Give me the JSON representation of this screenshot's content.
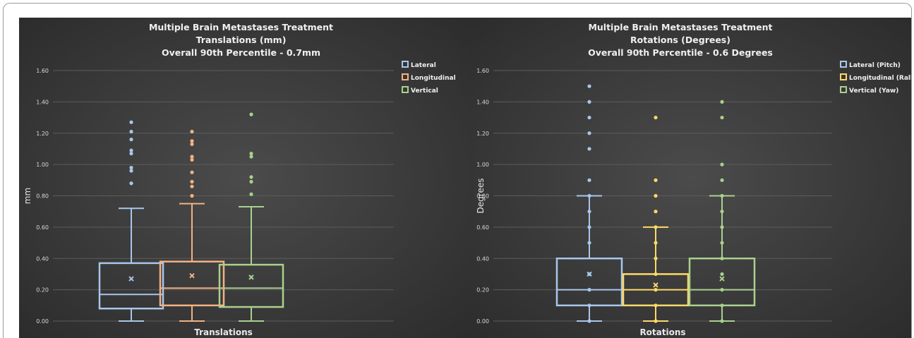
{
  "chart_data": [
    {
      "type": "box",
      "title_lines": [
        "Multiple Brain Metastases Treatment",
        "Translations (mm)",
        "Overall 90th Percentile - 0.7mm"
      ],
      "xlabel": "Translations",
      "ylabel": "mm",
      "ylim": [
        0,
        1.6
      ],
      "yticks": [
        "0.00",
        "0.20",
        "0.40",
        "0.60",
        "0.80",
        "1.00",
        "1.20",
        "1.40",
        "1.60"
      ],
      "grid": true,
      "legend": "top-right",
      "series": [
        {
          "name": "Lateral",
          "color": "#a9c6ea",
          "whisker_low": 0,
          "q1": 0.08,
          "median": 0.17,
          "q3": 0.37,
          "whisker_high": 0.72,
          "mean": 0.27,
          "points": [],
          "outliers": [
            0.88,
            0.96,
            0.98,
            1.07,
            1.09,
            1.16,
            1.21,
            1.27
          ]
        },
        {
          "name": "Longitudinal",
          "color": "#f4b183",
          "whisker_low": 0,
          "q1": 0.1,
          "median": 0.21,
          "q3": 0.38,
          "whisker_high": 0.75,
          "mean": 0.29,
          "points": [],
          "outliers": [
            0.8,
            0.86,
            0.89,
            0.95,
            1.03,
            1.05,
            1.13,
            1.15,
            1.21
          ]
        },
        {
          "name": "Vertical",
          "color": "#a9d18e",
          "whisker_low": 0,
          "q1": 0.09,
          "median": 0.21,
          "q3": 0.36,
          "whisker_high": 0.73,
          "mean": 0.28,
          "points": [],
          "outliers": [
            0.81,
            0.89,
            0.92,
            1.05,
            1.07,
            1.32
          ]
        }
      ]
    },
    {
      "type": "box",
      "title_lines": [
        "Multiple Brain Metastases Treatment",
        "Rotations (Degrees)",
        "Overall 90th Percentile - 0.6 Degrees"
      ],
      "xlabel": "Rotations",
      "ylabel": "Degrees",
      "ylim": [
        0,
        1.6
      ],
      "yticks": [
        "0.00",
        "0.20",
        "0.40",
        "0.60",
        "0.80",
        "1.00",
        "1.20",
        "1.40",
        "1.60"
      ],
      "grid": true,
      "legend": "top-right",
      "series": [
        {
          "name": "Lateral (Pitch)",
          "color": "#a9c6ea",
          "whisker_low": 0,
          "q1": 0.1,
          "median": 0.2,
          "q3": 0.4,
          "whisker_high": 0.8,
          "mean": 0.3,
          "points": [
            0,
            0.1,
            0.2,
            0.3,
            0.5,
            0.6,
            0.7,
            0.8
          ],
          "outliers": [
            0.9,
            1.1,
            1.2,
            1.3,
            1.4,
            1.5
          ]
        },
        {
          "name": "Longitudinal (Rall)",
          "color": "#ffd966",
          "whisker_low": 0,
          "q1": 0.1,
          "median": 0.2,
          "q3": 0.3,
          "whisker_high": 0.6,
          "mean": 0.23,
          "points": [
            0,
            0.1,
            0.2,
            0.3,
            0.4,
            0.5,
            0.6
          ],
          "outliers": [
            0.7,
            0.8,
            0.9,
            1.3
          ]
        },
        {
          "name": "Vertical (Yaw)",
          "color": "#a9d18e",
          "whisker_low": 0,
          "q1": 0.1,
          "median": 0.2,
          "q3": 0.4,
          "whisker_high": 0.8,
          "mean": 0.27,
          "points": [
            0,
            0.1,
            0.2,
            0.3,
            0.4,
            0.5,
            0.6,
            0.7,
            0.8
          ],
          "outliers": [
            0.9,
            1.0,
            1.3,
            1.4
          ]
        }
      ]
    }
  ]
}
